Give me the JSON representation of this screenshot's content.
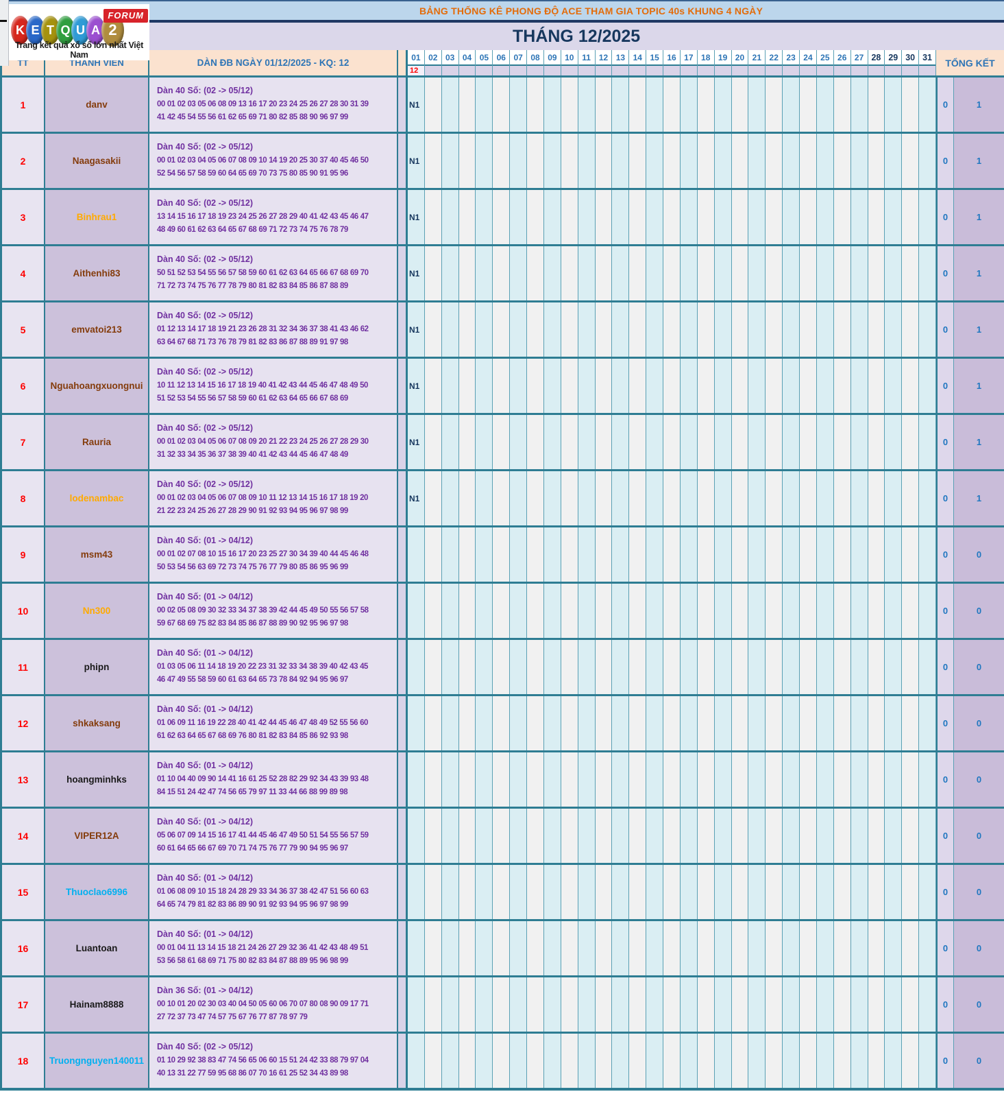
{
  "logo": {
    "letters": [
      {
        "ch": "K",
        "color": "#d6271d"
      },
      {
        "ch": "E",
        "color": "#2968c8"
      },
      {
        "ch": "T",
        "color": "#a5920f"
      },
      {
        "ch": "Q",
        "color": "#2f9e3f"
      },
      {
        "ch": "U",
        "color": "#2f9bd6"
      },
      {
        "ch": "A",
        "color": "#9b4fd0"
      },
      {
        "ch": "2",
        "color": "#b08d3e"
      }
    ],
    "forum_label": "FORUM",
    "tagline": "Trang kết quả xổ số lớn nhất Việt Nam"
  },
  "header": {
    "top_title": "BẢNG THỐNG KÊ PHONG ĐỘ ACE THAM GIA TOPIC 40s KHUNG 4 NGÀY",
    "month_title": "THÁNG 12/2025"
  },
  "table": {
    "col_tt": "TT",
    "col_member": "THÀNH VIÊN",
    "col_dan": "DÀN ĐB NGÀY 01/12/2025 - KQ: 12",
    "col_total": "TỔNG KẾT",
    "days": [
      "01",
      "02",
      "03",
      "04",
      "05",
      "06",
      "07",
      "08",
      "09",
      "10",
      "11",
      "12",
      "13",
      "14",
      "15",
      "16",
      "17",
      "18",
      "19",
      "20",
      "21",
      "22",
      "23",
      "24",
      "25",
      "26",
      "27",
      "28",
      "29",
      "30",
      "31"
    ],
    "bold_days_from": 28,
    "day01_result": "12",
    "rows": [
      {
        "tt": "1",
        "name": "danv",
        "name_color": "#843c0c",
        "dan_title": "Dàn 40 Số: (02 -> 05/12)",
        "numbers": "00 01 02 03 05 06 08 09 13 16 17 20 23 24 25 26 27 28 30 31 39 41 42 45 54 55 56 61 62 65 69 71 80 82 85 88 90 96 97 99",
        "day01": "N1",
        "total_a": "0",
        "total_b": "1"
      },
      {
        "tt": "2",
        "name": "Naagasakii",
        "name_color": "#843c0c",
        "dan_title": "Dàn 40 Số: (02 -> 05/12)",
        "numbers": "00 01 02 03 04 05 06 07 08 09 10 14 19 20 25 30 37 40 45 46 50 52 54 56 57 58 59 60 64 65 69 70 73 75 80 85 90 91 95 96",
        "day01": "N1",
        "total_a": "0",
        "total_b": "1"
      },
      {
        "tt": "3",
        "name": "Binhrau1",
        "name_color": "#ffaa00",
        "dan_title": "Dàn 40 Số: (02 -> 05/12)",
        "numbers": "13 14 15 16 17 18 19 23 24 25 26 27 28 29 40 41 42 43 45 46 47 48 49 60 61 62 63 64 65 67 68 69 71 72 73 74 75 76 78 79",
        "day01": "N1",
        "total_a": "0",
        "total_b": "1"
      },
      {
        "tt": "4",
        "name": "Aithenhi83",
        "name_color": "#843c0c",
        "dan_title": "Dàn 40 Số: (02 -> 05/12)",
        "numbers": "50 51 52 53 54 55 56 57 58 59 60 61 62 63 64 65 66 67 68 69 70 71 72 73 74 75 76 77 78 79 80 81 82 83 84 85 86 87 88 89",
        "day01": "N1",
        "total_a": "0",
        "total_b": "1"
      },
      {
        "tt": "5",
        "name": "emvatoi213",
        "name_color": "#843c0c",
        "dan_title": "Dàn 40 Số: (02 -> 05/12)",
        "numbers": "01 12 13 14 17 18 19 21 23 26 28 31 32 34 36 37 38 41 43 46 62 63 64 67 68 71 73 76 78 79 81 82 83 86 87 88 89 91 97 98",
        "day01": "N1",
        "total_a": "0",
        "total_b": "1"
      },
      {
        "tt": "6",
        "name": "Nguahoangxuongnui",
        "name_color": "#843c0c",
        "dan_title": "Dàn 40 Số: (02 -> 05/12)",
        "numbers": "10 11 12 13 14 15 16 17 18 19 40 41 42 43 44 45 46 47 48 49 50 51 52 53 54 55 56 57 58 59 60 61 62 63 64 65 66 67 68 69",
        "day01": "N1",
        "total_a": "0",
        "total_b": "1"
      },
      {
        "tt": "7",
        "name": "Rauria",
        "name_color": "#843c0c",
        "dan_title": "Dàn 40 Số: (02 -> 05/12)",
        "numbers": "00 01 02 03 04 05 06 07 08 09 20 21 22 23 24 25 26 27 28 29 30 31 32 33 34 35 36 37 38 39 40 41 42 43 44 45 46 47 48 49",
        "day01": "N1",
        "total_a": "0",
        "total_b": "1"
      },
      {
        "tt": "8",
        "name": "lodenambac",
        "name_color": "#ffaa00",
        "dan_title": "Dàn 40 Số: (02 -> 05/12)",
        "numbers": "00 01 02 03 04 05 06 07 08 09 10 11 12 13 14 15 16 17 18 19 20 21 22 23 24 25 26 27 28 29 90 91 92 93 94 95 96 97 98 99",
        "day01": "N1",
        "total_a": "0",
        "total_b": "1"
      },
      {
        "tt": "9",
        "name": "msm43",
        "name_color": "#843c0c",
        "dan_title": "Dàn 40 Số: (01 -> 04/12)",
        "numbers": "00 01 02 07 08 10 15 16 17 20 23 25 27 30 34 39 40 44 45 46 48 50 53 54 56 63 69 72 73 74 75 76 77 79 80 85 86 95 96 99",
        "day01": "",
        "total_a": "0",
        "total_b": "0"
      },
      {
        "tt": "10",
        "name": "Nn300",
        "name_color": "#ffaa00",
        "dan_title": "Dàn 40 Số: (01 -> 04/12)",
        "numbers": "00 02 05 08 09 30 32 33 34 37 38 39 42 44 45 49 50 55 56 57 58 59 67 68 69 75 82 83 84 85 86 87 88 89 90 92 95 96 97 98",
        "day01": "",
        "total_a": "0",
        "total_b": "0"
      },
      {
        "tt": "11",
        "name": "phipn",
        "name_color": "#1a1a1a",
        "dan_title": "Dàn 40 Số: (01 -> 04/12)",
        "numbers": "01 03 05 06 11 14 18 19 20 22 23 31 32 33 34 38 39 40 42 43 45 46 47 49 55 58 59 60 61 63 64 65 73 78 84 92 94 95 96 97",
        "day01": "",
        "total_a": "0",
        "total_b": "0"
      },
      {
        "tt": "12",
        "name": "shkaksang",
        "name_color": "#843c0c",
        "dan_title": "Dàn 40 Số: (01 -> 04/12)",
        "numbers": "01 06 09 11 16 19 22 28 40 41 42 44 45 46 47 48 49 52 55 56 60 61 62 63 64 65 67 68 69 76 80 81 82 83 84 85 86 92 93 98",
        "day01": "",
        "total_a": "0",
        "total_b": "0"
      },
      {
        "tt": "13",
        "name": "hoangminhks",
        "name_color": "#1a1a1a",
        "dan_title": "Dàn 40 Số: (01 -> 04/12)",
        "numbers": "01 10 04 40 09 90 14 41 16 61 25 52 28 82 29 92 34 43 39 93 48 84 15 51 24 42 47 74 56 65 79 97 11 33 44 66 88 99 89 98",
        "day01": "",
        "total_a": "0",
        "total_b": "0"
      },
      {
        "tt": "14",
        "name": "VIPER12A",
        "name_color": "#843c0c",
        "dan_title": "Dàn 40 Số: (01 -> 04/12)",
        "numbers": "05 06 07 09 14 15 16 17 41 44 45 46 47 49 50 51 54 55 56 57 59 60 61 64 65 66 67 69 70 71 74 75 76 77 79 90 94 95 96 97",
        "day01": "",
        "total_a": "0",
        "total_b": "0"
      },
      {
        "tt": "15",
        "name": "Thuoclao6996",
        "name_color": "#00b0f0",
        "dan_title": "Dàn 40 Số: (01 -> 04/12)",
        "numbers": "01 06 08 09 10 15 18 24 28 29 33 34 36 37 38 42 47 51 56 60 63 64 65 74 79 81 82 83 86 89 90 91 92 93 94 95 96 97 98 99",
        "day01": "",
        "total_a": "0",
        "total_b": "0"
      },
      {
        "tt": "16",
        "name": "Luantoan",
        "name_color": "#1a1a1a",
        "dan_title": "Dàn 40 Số: (01 -> 04/12)",
        "numbers": "00 01 04 11 13 14 15 18 21 24 26 27 29 32 36 41 42 43 48 49 51 53 56 58 61 68 69 71 75 80 82 83 84 87 88 89 95 96 98 99",
        "day01": "",
        "total_a": "0",
        "total_b": "0"
      },
      {
        "tt": "17",
        "name": "Hainam8888",
        "name_color": "#1a1a1a",
        "dan_title": "Dàn 36 Số: (01 -> 04/12)",
        "numbers": "00 10 01 20 02 30 03 40 04 50 05 60 06 70 07 80 08 90 09 17 71 27 72 37 73 47 74 57 75 67 76 77 87 78 97 79",
        "day01": "",
        "total_a": "0",
        "total_b": "0"
      },
      {
        "tt": "18",
        "name": "Truongnguyen140011",
        "name_color": "#00b0f0",
        "dan_title": "Dàn 40 Số: (02 -> 05/12)",
        "numbers": "01 10 29 92 38 83 47 74 56 65 06 60 15 51 24 42 33 88 79 97 04 40 13 31 22 77 59 95 68 86 07 70 16 61 25 52 34 43 89 98",
        "day01": "",
        "total_a": "0",
        "total_b": "0"
      }
    ]
  },
  "colors": {
    "border_teal": "#2e7d93",
    "header_peach": "#fbe2cf",
    "day_blue": "#daeef3",
    "day_gray": "#f1f1f1",
    "accent_blue": "#2e75b6",
    "result_red": "#fe0000",
    "dan_purple": "#7030a0"
  }
}
